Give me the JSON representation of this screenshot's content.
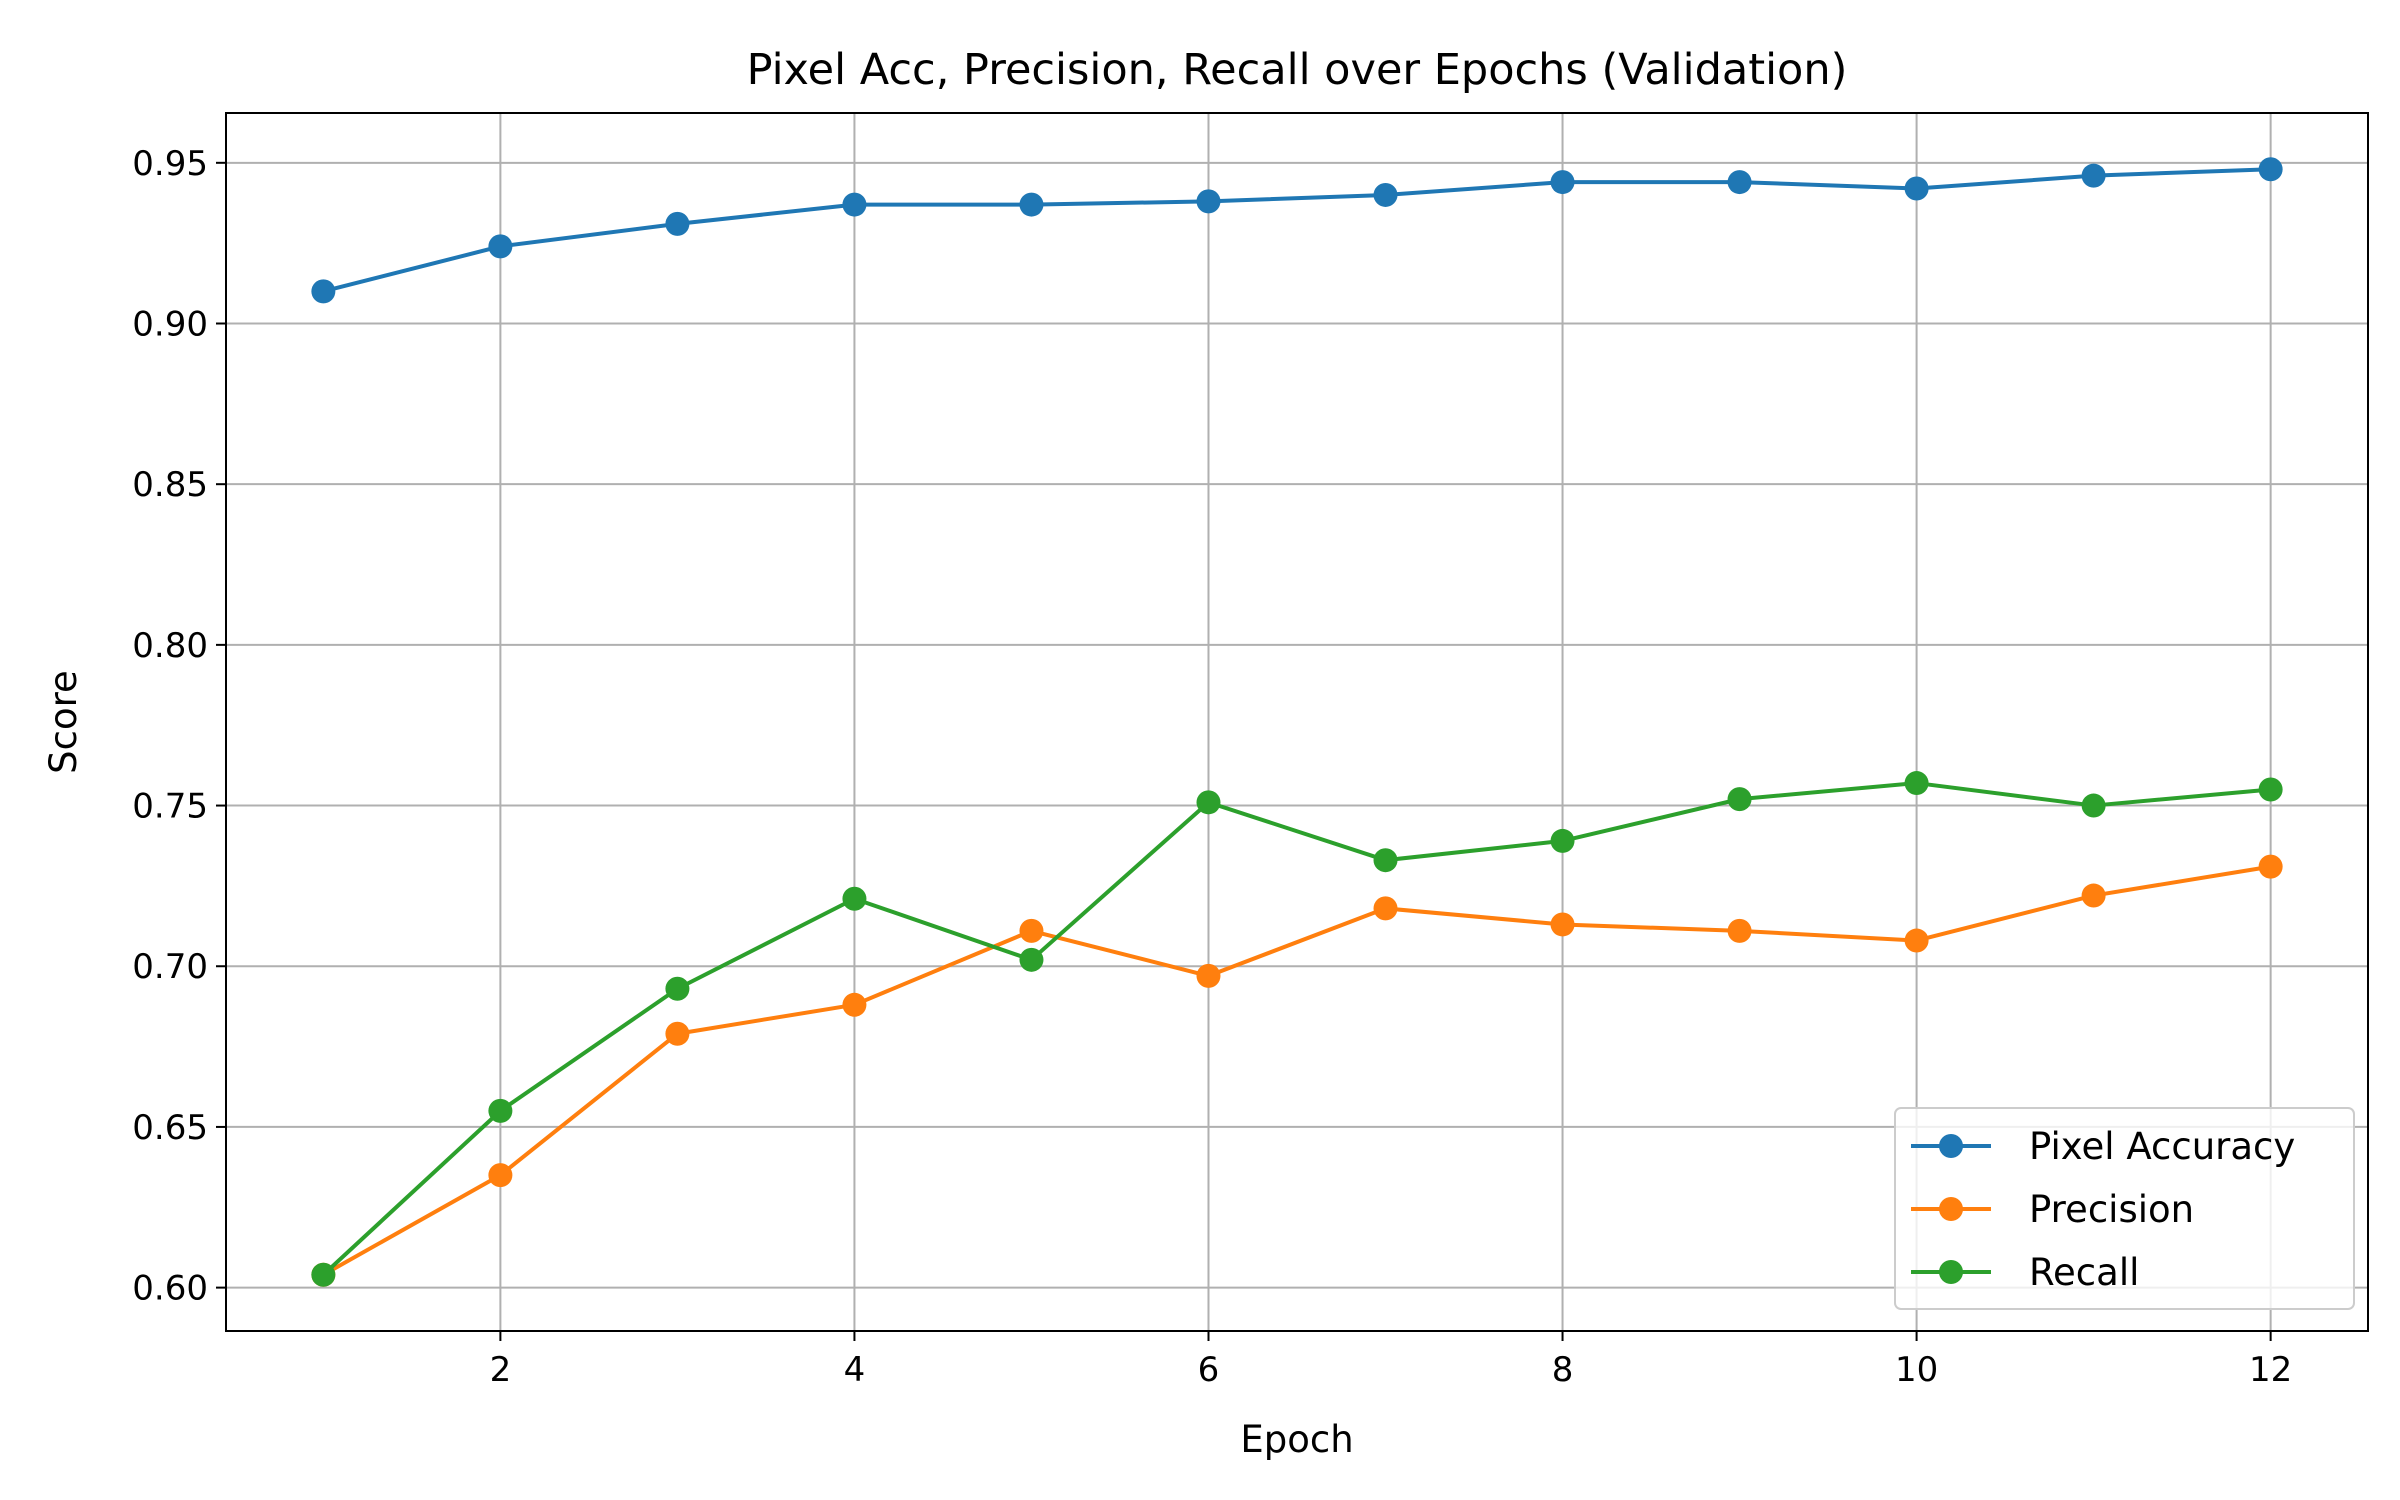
{
  "chart_data": {
    "type": "line",
    "title": "Pixel Acc, Precision, Recall over Epochs (Validation)",
    "xlabel": "Epoch",
    "ylabel": "Score",
    "x": [
      1,
      2,
      3,
      4,
      5,
      6,
      7,
      8,
      9,
      10,
      11,
      12
    ],
    "xlim": [
      0.45,
      12.55
    ],
    "ylim": [
      0.5865,
      0.9655
    ],
    "xticks": [
      2,
      4,
      6,
      8,
      10,
      12
    ],
    "xtick_labels": [
      "2",
      "4",
      "6",
      "8",
      "10",
      "12"
    ],
    "yticks": [
      0.6,
      0.65,
      0.7,
      0.75,
      0.8,
      0.85,
      0.9,
      0.95
    ],
    "ytick_labels": [
      "0.60",
      "0.65",
      "0.70",
      "0.75",
      "0.80",
      "0.85",
      "0.90",
      "0.95"
    ],
    "grid": true,
    "legend_position": "lower-right",
    "series": [
      {
        "name": "Pixel Accuracy",
        "color": "#1f77b4",
        "values": [
          0.91,
          0.924,
          0.931,
          0.937,
          0.937,
          0.938,
          0.94,
          0.944,
          0.944,
          0.942,
          0.946,
          0.948
        ]
      },
      {
        "name": "Precision",
        "color": "#ff7f0e",
        "values": [
          0.604,
          0.635,
          0.679,
          0.688,
          0.711,
          0.697,
          0.718,
          0.713,
          0.711,
          0.708,
          0.722,
          0.731
        ]
      },
      {
        "name": "Recall",
        "color": "#2ca02c",
        "values": [
          0.604,
          0.655,
          0.693,
          0.721,
          0.702,
          0.751,
          0.733,
          0.739,
          0.752,
          0.757,
          0.75,
          0.755
        ]
      }
    ]
  }
}
